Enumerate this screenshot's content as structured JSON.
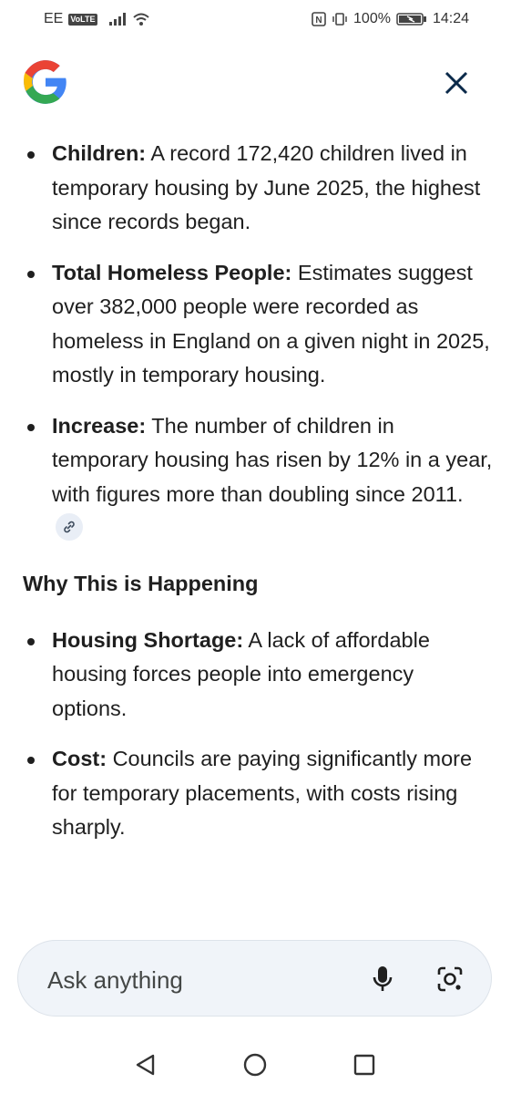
{
  "status_bar": {
    "carrier": "EE",
    "volte": "VoLTE",
    "battery": "100%",
    "time": "14:24"
  },
  "header": {
    "logo_icon": "google-g-icon",
    "close_icon": "close-icon"
  },
  "content": {
    "bullets_top": [
      {
        "title": "Children:",
        "text": " A record 172,420 children lived in temporary housing by June 2025, the highest since records began."
      },
      {
        "title": "Total Homeless People:",
        "text": " Estimates suggest over 382,000 people were recorded as homeless in England on a given night in 2025, mostly in temporary housing."
      },
      {
        "title": "Increase:",
        "text": " The number of children in temporary housing has risen by 12% in a year, with figures more than doubling since 2011."
      }
    ],
    "section_heading": "Why This is Happening",
    "bullets_bottom": [
      {
        "title": "Housing Shortage:",
        "text": " A lack of affordable housing forces people into emergency options."
      },
      {
        "title": "Cost:",
        "text": " Councils are paying significantly more for temporary placements, with costs rising sharply."
      }
    ],
    "link_icon": "link-icon"
  },
  "ask_bar": {
    "placeholder": "Ask anything",
    "mic_icon": "microphone-icon",
    "lens_icon": "camera-lens-icon"
  },
  "nav_bar": {
    "back_icon": "back-triangle-icon",
    "home_icon": "home-circle-icon",
    "recent_icon": "recents-square-icon"
  },
  "colors": {
    "text": "#1f1f1f",
    "ask_bar_bg": "#f0f4f9",
    "close_icon": "#0b2a4a",
    "link_chip_bg": "#e9eef6"
  }
}
